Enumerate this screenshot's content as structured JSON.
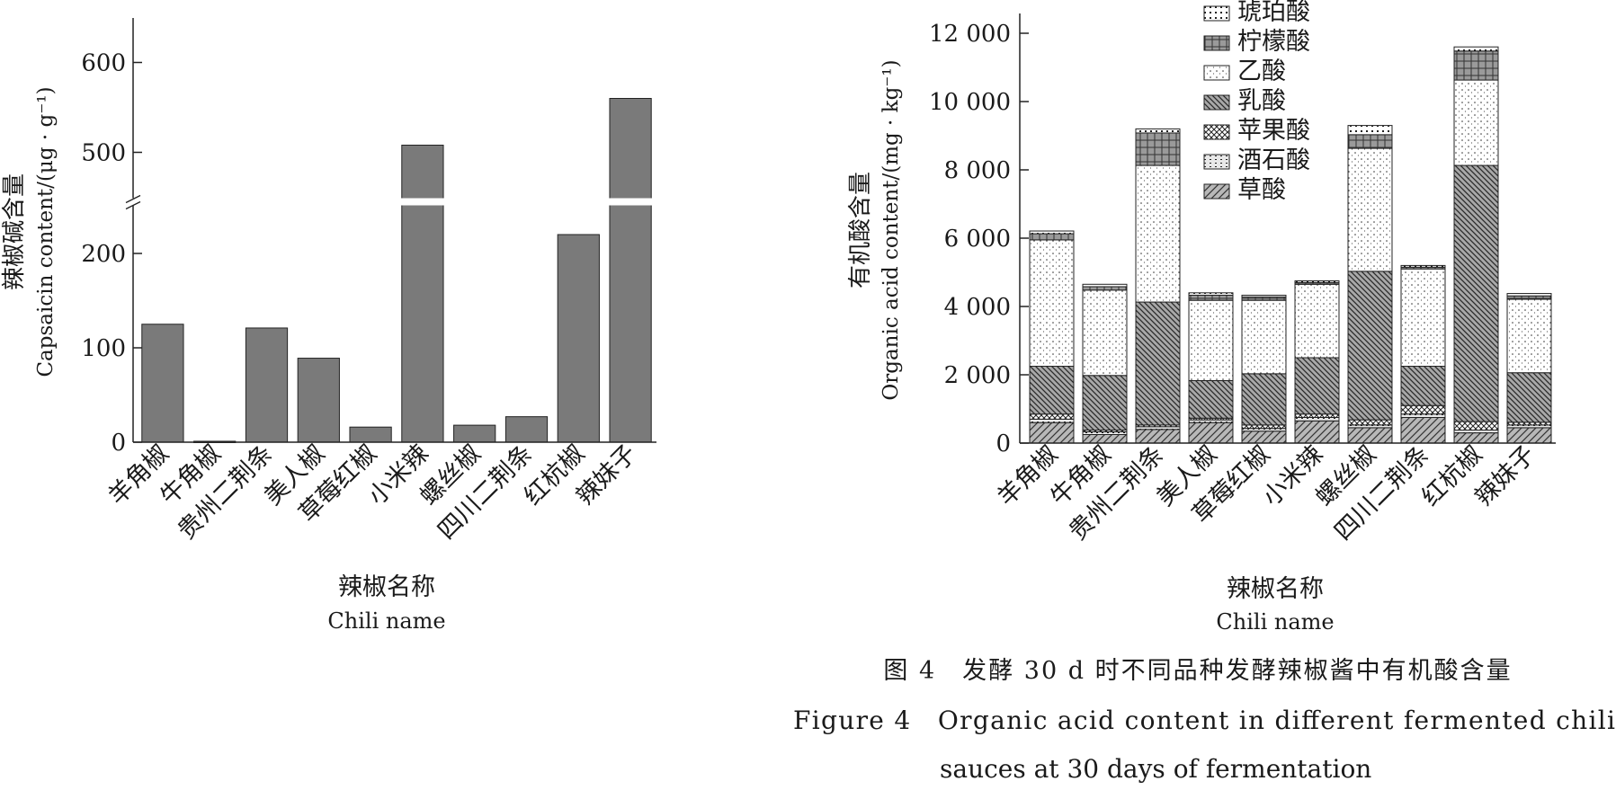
{
  "chart_data": [
    {
      "type": "bar",
      "ylabel_cn": "辣椒碱含量",
      "ylabel_en": "Capsaicin content/(μg · g⁻¹)",
      "xlabel_cn": "辣椒名称",
      "xlabel_en": "Chili name",
      "categories": [
        "羊角椒",
        "牛角椒",
        "贵州二荆条",
        "美人椒",
        "草莓红椒",
        "小米辣",
        "螺丝椒",
        "四川二荆条",
        "红杭椒",
        "辣妹子"
      ],
      "values": [
        125,
        1,
        121,
        89,
        16,
        508,
        18,
        27,
        220,
        560
      ],
      "y_ticks": [
        "0",
        "100",
        "200",
        "500",
        "600"
      ],
      "axis_break": [
        250,
        450
      ],
      "bar_color": "#7a7a7a"
    },
    {
      "type": "bar",
      "stacked": true,
      "ylabel_cn": "有机酸含量",
      "ylabel_en": "Organic acid content/(mg · kg⁻¹)",
      "xlabel_cn": "辣椒名称",
      "xlabel_en": "Chili name",
      "categories": [
        "羊角椒",
        "牛角椒",
        "贵州二荆条",
        "美人椒",
        "草莓红椒",
        "小米辣",
        "螺丝椒",
        "四川二荆条",
        "红杭椒",
        "辣妹子"
      ],
      "y_ticks": [
        "0",
        "2 000",
        "4 000",
        "6 000",
        "8 000",
        "10 000",
        "12 000"
      ],
      "ylim": [
        0,
        12000
      ],
      "legend_position": "top-left",
      "series": [
        {
          "name": "草酸",
          "values": [
            600,
            250,
            400,
            600,
            350,
            650,
            450,
            750,
            300,
            450
          ]
        },
        {
          "name": "酒石酸",
          "values": [
            100,
            80,
            80,
            80,
            80,
            100,
            80,
            100,
            80,
            80
          ]
        },
        {
          "name": "苹果酸",
          "values": [
            150,
            50,
            50,
            50,
            100,
            100,
            150,
            250,
            250,
            80
          ]
        },
        {
          "name": "乳酸",
          "values": [
            1400,
            1600,
            3600,
            1100,
            1500,
            1650,
            4350,
            1150,
            7500,
            1450
          ]
        },
        {
          "name": "乙酸",
          "values": [
            3700,
            2500,
            4000,
            2350,
            2150,
            2150,
            3600,
            2850,
            2500,
            2150
          ]
        },
        {
          "name": "柠檬酸",
          "values": [
            180,
            100,
            950,
            150,
            100,
            50,
            400,
            50,
            850,
            100
          ]
        },
        {
          "name": "琥珀酸",
          "values": [
            80,
            70,
            120,
            70,
            50,
            50,
            270,
            50,
            120,
            70
          ]
        }
      ]
    }
  ],
  "caption": {
    "line1": "图 4　发酵 30 d 时不同品种发酵辣椒酱中有机酸含量",
    "line2": "Figure 4　Organic acid content in different fermented chili",
    "line3": "sauces at 30 days of fermentation"
  }
}
